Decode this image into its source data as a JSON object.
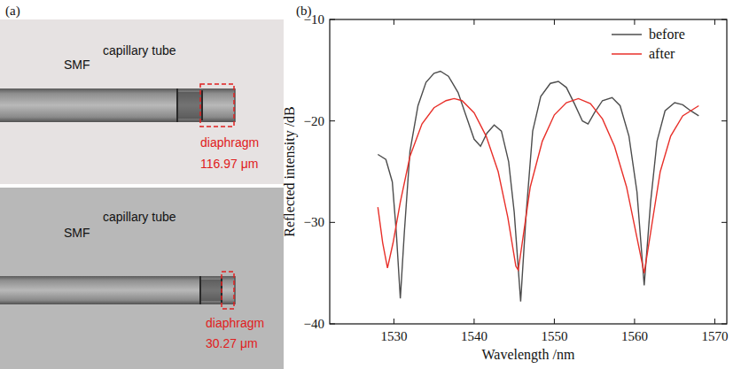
{
  "chart_data": {
    "type": "line",
    "title": "(b)",
    "x_label": "Wavelength /nm",
    "y_label": "Reflected intensity /dB",
    "xlim": [
      1522,
      1571.5
    ],
    "xticks": [
      1530,
      1540,
      1550,
      1560,
      1570
    ],
    "ylim": [
      -40,
      -10
    ],
    "yticks": [
      -10,
      -20,
      -30,
      -40
    ],
    "legend": "upper right",
    "series": [
      {
        "name": "before",
        "color": "#4d4d4d",
        "x": [
          1528,
          1529,
          1529.8,
          1530.3,
          1530.8,
          1531.3,
          1532,
          1533,
          1534,
          1535,
          1535.8,
          1536.8,
          1538,
          1539,
          1540,
          1540.8,
          1541.6,
          1542.5,
          1543.4,
          1544.3,
          1545,
          1545.8,
          1546.5,
          1547.3,
          1548.3,
          1549.5,
          1550.5,
          1551.5,
          1552.5,
          1553.5,
          1554.2,
          1555,
          1556,
          1557.2,
          1558.2,
          1559.3,
          1560.3,
          1561.2,
          1562,
          1562.8,
          1563.8,
          1565,
          1566,
          1567,
          1568
        ],
        "values": [
          -23.3,
          -23.8,
          -26,
          -31,
          -37.5,
          -31,
          -23,
          -18.5,
          -16.2,
          -15.3,
          -15.1,
          -15.6,
          -17.2,
          -19.5,
          -21.8,
          -22.5,
          -21.2,
          -20.4,
          -21,
          -24,
          -29,
          -37.8,
          -29,
          -21,
          -17.6,
          -16.3,
          -16.1,
          -16.7,
          -18.3,
          -20,
          -20.3,
          -19.2,
          -18,
          -17.7,
          -18.5,
          -21.5,
          -27,
          -36.2,
          -28,
          -22,
          -19,
          -18.2,
          -18.4,
          -19,
          -19.5
        ]
      },
      {
        "name": "after",
        "color": "#e8302a",
        "x": [
          1528,
          1528.6,
          1529.2,
          1529.9,
          1530.8,
          1532,
          1533.5,
          1535,
          1536.5,
          1537.5,
          1538.5,
          1540,
          1541.5,
          1543,
          1544.2,
          1545.2,
          1545.5,
          1546,
          1547,
          1548.5,
          1550,
          1551.5,
          1553,
          1554.5,
          1556,
          1557.5,
          1559,
          1560.3,
          1561.2,
          1562,
          1563.2,
          1564.5,
          1566,
          1568
        ],
        "values": [
          -28.5,
          -32,
          -34.5,
          -32,
          -28,
          -23.5,
          -20.3,
          -18.7,
          -18,
          -17.8,
          -18,
          -19.2,
          -21.5,
          -25,
          -29.5,
          -34.3,
          -34.7,
          -32,
          -26.5,
          -22,
          -19.4,
          -18.2,
          -17.8,
          -18.3,
          -19.8,
          -22.5,
          -26.5,
          -31.5,
          -35,
          -31,
          -25,
          -21.5,
          -19.5,
          -18.5
        ]
      }
    ]
  },
  "panel_a": {
    "label": "(a)",
    "photos": [
      {
        "fiber": "SMF",
        "tube": "capillary tube",
        "diaphragm": "diaphragm",
        "thickness": "116.97 μm"
      },
      {
        "fiber": "SMF",
        "tube": "capillary tube",
        "diaphragm": "diaphragm",
        "thickness": "30.27 μm"
      }
    ]
  }
}
